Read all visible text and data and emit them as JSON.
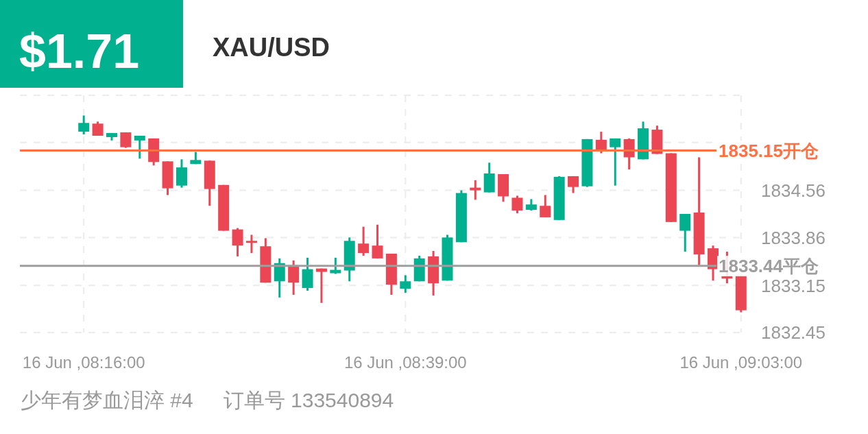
{
  "chart_data": {
    "type": "candlestick",
    "title": "XAU/USD",
    "subtitle": "$1.71",
    "categories": [
      "16 Jun ,08:16:00",
      null,
      null,
      null,
      null,
      null,
      null,
      null,
      null,
      null,
      null,
      null,
      null,
      null,
      null,
      null,
      null,
      null,
      null,
      null,
      null,
      null,
      null,
      "16 Jun ,08:39:00",
      null,
      null,
      null,
      null,
      null,
      null,
      null,
      null,
      null,
      null,
      null,
      null,
      null,
      null,
      null,
      null,
      null,
      null,
      null,
      null,
      null,
      null,
      null,
      "16 Jun ,09:03:00"
    ],
    "ohlc": [
      [
        1835.43,
        1835.67,
        1835.39,
        1835.56
      ],
      [
        1835.55,
        1835.58,
        1835.37,
        1835.37
      ],
      [
        1835.35,
        1835.41,
        1835.3,
        1835.41
      ],
      [
        1835.42,
        1835.42,
        1835.19,
        1835.2
      ],
      [
        1835.3,
        1835.37,
        1835.03,
        1835.37
      ],
      [
        1835.33,
        1835.33,
        1834.93,
        1834.98
      ],
      [
        1834.99,
        1834.99,
        1834.49,
        1834.59
      ],
      [
        1834.63,
        1835.02,
        1834.6,
        1834.9
      ],
      [
        1834.95,
        1835.13,
        1834.95,
        1835.01
      ],
      [
        1835.0,
        1835.0,
        1834.33,
        1834.58
      ],
      [
        1834.64,
        1834.64,
        1833.96,
        1833.96
      ],
      [
        1833.98,
        1834.0,
        1833.58,
        1833.74
      ],
      [
        1833.81,
        1833.9,
        1833.63,
        1833.78
      ],
      [
        1833.73,
        1833.85,
        1833.19,
        1833.19
      ],
      [
        1833.21,
        1833.55,
        1832.97,
        1833.48
      ],
      [
        1833.45,
        1833.52,
        1833.01,
        1833.19
      ],
      [
        1833.11,
        1833.56,
        1833.07,
        1833.39
      ],
      [
        1833.4,
        1833.4,
        1832.89,
        1833.35
      ],
      [
        1833.33,
        1833.56,
        1833.32,
        1833.38
      ],
      [
        1833.37,
        1833.86,
        1833.21,
        1833.81
      ],
      [
        1833.77,
        1834.02,
        1833.59,
        1833.63
      ],
      [
        1833.74,
        1834.05,
        1833.55,
        1833.55
      ],
      [
        1833.62,
        1833.62,
        1833.01,
        1833.16
      ],
      [
        1833.1,
        1833.3,
        1833.04,
        1833.21
      ],
      [
        1833.21,
        1833.59,
        1833.21,
        1833.55
      ],
      [
        1833.58,
        1833.66,
        1833.0,
        1833.18
      ],
      [
        1833.22,
        1833.9,
        1833.22,
        1833.86
      ],
      [
        1833.79,
        1834.56,
        1833.79,
        1834.52
      ],
      [
        1834.6,
        1834.71,
        1834.42,
        1834.56
      ],
      [
        1834.53,
        1834.97,
        1834.53,
        1834.81
      ],
      [
        1834.8,
        1834.8,
        1834.39,
        1834.47
      ],
      [
        1834.45,
        1834.48,
        1834.22,
        1834.26
      ],
      [
        1834.27,
        1834.43,
        1834.26,
        1834.35
      ],
      [
        1834.33,
        1834.49,
        1834.16,
        1834.16
      ],
      [
        1834.12,
        1834.77,
        1834.12,
        1834.76
      ],
      [
        1834.77,
        1834.77,
        1834.52,
        1834.61
      ],
      [
        1834.62,
        1835.32,
        1834.61,
        1835.32
      ],
      [
        1835.31,
        1835.43,
        1835.11,
        1835.15
      ],
      [
        1835.2,
        1835.33,
        1834.63,
        1835.33
      ],
      [
        1835.32,
        1835.33,
        1834.87,
        1835.05
      ],
      [
        1835.02,
        1835.58,
        1835.02,
        1835.48
      ],
      [
        1835.46,
        1835.52,
        1835.1,
        1835.1
      ],
      [
        1835.11,
        1835.11,
        1834.09,
        1834.09
      ],
      [
        1833.96,
        1834.21,
        1833.65,
        1834.21
      ],
      [
        1834.23,
        1835.05,
        1833.45,
        1833.61
      ],
      [
        1833.7,
        1833.74,
        1833.22,
        1833.39
      ],
      [
        1833.29,
        1833.65,
        1833.18,
        1833.25
      ],
      [
        1833.3,
        1833.3,
        1832.75,
        1832.78
      ]
    ],
    "colors": [
      "#00b08f",
      "#eb4654",
      "#00b08f",
      "#eb4654",
      "#00b08f",
      "#eb4654",
      "#eb4654",
      "#00b08f",
      "#00b08f",
      "#eb4654",
      "#eb4654",
      "#eb4654",
      "#eb4654",
      "#eb4654",
      "#00b08f",
      "#eb4654",
      "#00b08f",
      "#eb4654",
      "#00b08f",
      "#00b08f",
      "#eb4654",
      "#eb4654",
      "#eb4654",
      "#00b08f",
      "#00b08f",
      "#eb4654",
      "#00b08f",
      "#00b08f",
      "#eb4654",
      "#00b08f",
      "#eb4654",
      "#eb4654",
      "#00b08f",
      "#eb4654",
      "#00b08f",
      "#eb4654",
      "#00b08f",
      "#eb4654",
      "#00b08f",
      "#eb4654",
      "#00b08f",
      "#eb4654",
      "#eb4654",
      "#00b08f",
      "#eb4654",
      "#eb4654",
      "#eb4654",
      "#eb4654"
    ],
    "ylim": [
      1832.45,
      1835.97
    ],
    "yticks": [
      1832.45,
      1833.15,
      1833.86,
      1834.56,
      {
        "value": 1835.27,
        "label": null
      },
      {
        "value": 1835.97,
        "label": null
      }
    ],
    "ref_lines": [
      {
        "axis": "y",
        "value": 1835.15,
        "label": "1835.15开仓",
        "color": "#ff7043"
      },
      {
        "axis": "y",
        "value": 1833.44,
        "label": "1833.44平仓",
        "color": "#9e9e9e"
      }
    ],
    "annotations": [
      "少年有梦血泪淬 #4",
      "订单号 133540894"
    ],
    "grid": true
  }
}
